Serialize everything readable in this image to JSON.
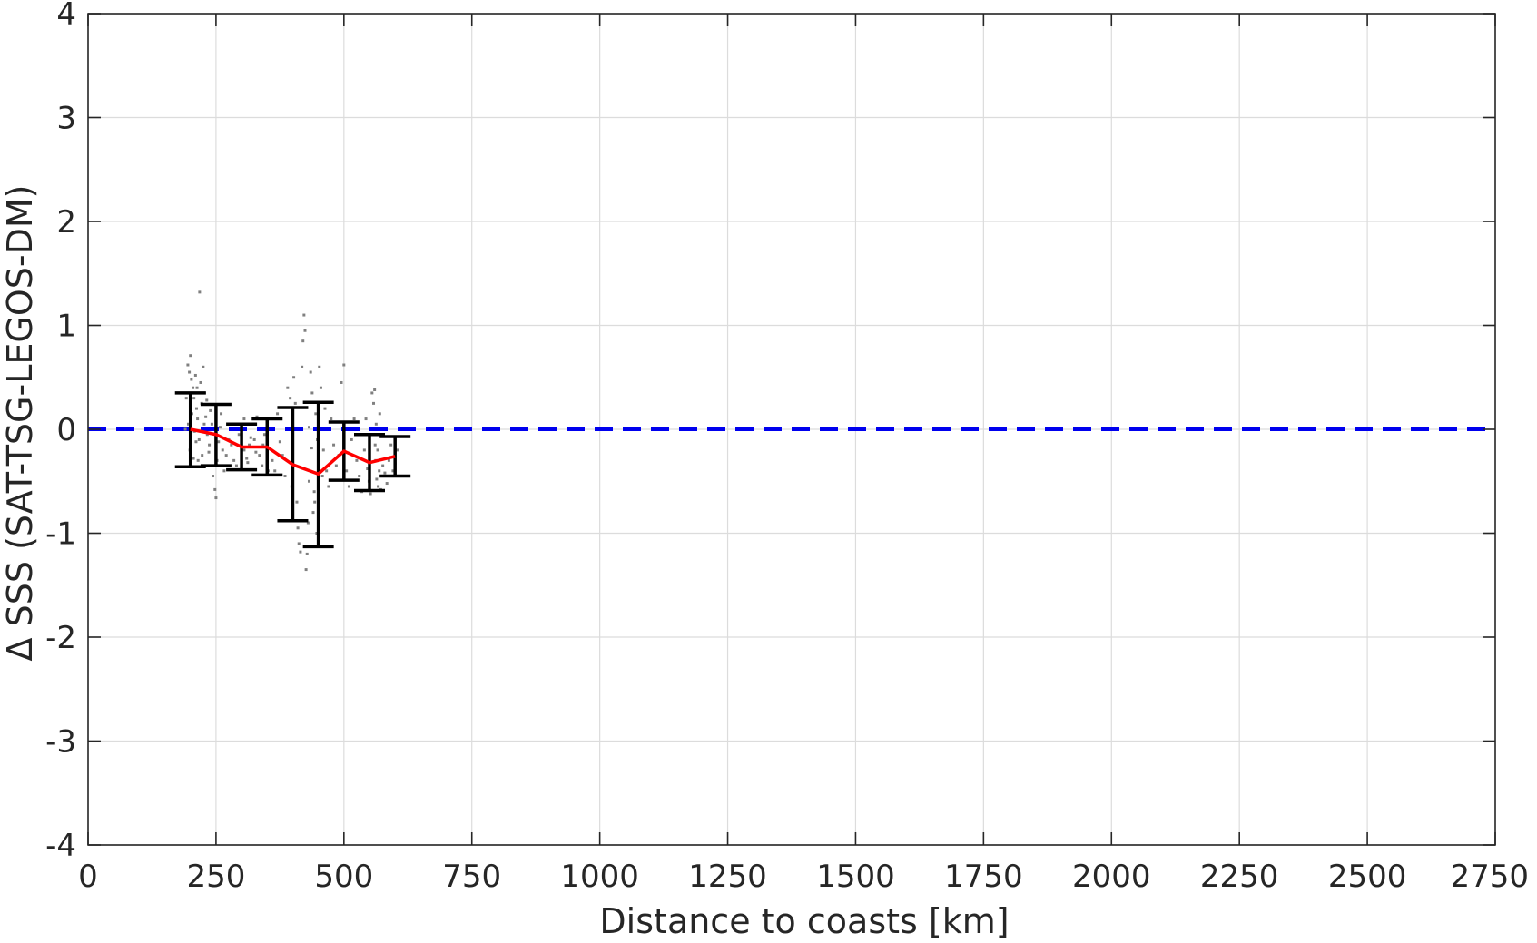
{
  "chart_data": {
    "type": "line",
    "title": "",
    "xlabel": "Distance to coasts [km]",
    "ylabel": "Δ SSS (SAT-TSG-LEGOS-DM)",
    "xlim": [
      0,
      2750
    ],
    "ylim": [
      -4,
      4
    ],
    "xticks": [
      0,
      250,
      500,
      750,
      1000,
      1250,
      1500,
      1750,
      2000,
      2250,
      2500,
      2750
    ],
    "yticks": [
      -4,
      -3,
      -2,
      -1,
      0,
      1,
      2,
      3,
      4
    ],
    "xtick_labels": [
      "0",
      "250",
      "500",
      "750",
      "1000",
      "1250",
      "1500",
      "1750",
      "2000",
      "2250",
      "2500",
      "2750"
    ],
    "ytick_labels": [
      "-4",
      "-3",
      "-2",
      "-1",
      "0",
      "1",
      "2",
      "3",
      "4"
    ],
    "grid": true,
    "colors": {
      "mean_line": "#ff0000",
      "zero_line": "#0000ee",
      "error_bars": "#000000",
      "scatter": "#808080",
      "grid": "#dcdcdc",
      "axes": "#262626"
    },
    "zero_line_y": 0,
    "series": [
      {
        "type": "line",
        "x": [
          200,
          250,
          300,
          350,
          400,
          450,
          500,
          550,
          600
        ],
        "y": [
          0.0,
          -0.05,
          -0.17,
          -0.17,
          -0.34,
          -0.43,
          -0.21,
          -0.32,
          -0.26
        ]
      },
      {
        "type": "errorbar",
        "x": [
          200,
          250,
          300,
          350,
          400,
          450,
          500,
          550,
          600
        ],
        "upper": [
          0.35,
          0.24,
          0.05,
          0.1,
          0.21,
          0.26,
          0.07,
          -0.05,
          -0.07
        ],
        "lower": [
          -0.36,
          -0.35,
          -0.39,
          -0.44,
          -0.88,
          -1.13,
          -0.49,
          -0.59,
          -0.45
        ]
      },
      {
        "type": "scatter",
        "points": [
          [
            195,
            0.62
          ],
          [
            198,
            0.55
          ],
          [
            200,
            0.71
          ],
          [
            202,
            0.48
          ],
          [
            205,
            0.4
          ],
          [
            207,
            0.3
          ],
          [
            210,
            0.52
          ],
          [
            212,
            0.2
          ],
          [
            203,
            0.15
          ],
          [
            196,
            0.05
          ],
          [
            208,
            -0.02
          ],
          [
            211,
            -0.12
          ],
          [
            199,
            -0.2
          ],
          [
            206,
            -0.28
          ],
          [
            214,
            0.1
          ],
          [
            218,
            1.32
          ],
          [
            220,
            0.45
          ],
          [
            222,
            0.25
          ],
          [
            225,
            0.6
          ],
          [
            228,
            0.35
          ],
          [
            215,
            -0.3
          ],
          [
            213,
            0.4
          ],
          [
            192,
            0.3
          ],
          [
            190,
            0.0
          ],
          [
            230,
            0.12
          ],
          [
            233,
            -0.05
          ],
          [
            236,
            -0.22
          ],
          [
            239,
            0.18
          ],
          [
            242,
            0.05
          ],
          [
            245,
            -0.35
          ],
          [
            248,
            -0.58
          ],
          [
            250,
            -0.66
          ],
          [
            252,
            -0.3
          ],
          [
            255,
            -0.12
          ],
          [
            258,
            0.02
          ],
          [
            260,
            0.15
          ],
          [
            263,
            -0.2
          ],
          [
            266,
            -0.4
          ],
          [
            270,
            -0.25
          ],
          [
            275,
            -0.1
          ],
          [
            280,
            -0.15
          ],
          [
            285,
            -0.3
          ],
          [
            290,
            -0.35
          ],
          [
            295,
            -0.05
          ],
          [
            300,
            0.02
          ],
          [
            305,
            -0.2
          ],
          [
            310,
            -0.28
          ],
          [
            315,
            -0.15
          ],
          [
            320,
            0.05
          ],
          [
            325,
            -0.1
          ],
          [
            330,
            0.12
          ],
          [
            335,
            -0.25
          ],
          [
            340,
            -0.35
          ],
          [
            345,
            -0.05
          ],
          [
            350,
            0.08
          ],
          [
            355,
            -0.18
          ],
          [
            360,
            -0.3
          ],
          [
            365,
            -0.4
          ],
          [
            370,
            0.15
          ],
          [
            375,
            -0.12
          ],
          [
            380,
            -0.25
          ],
          [
            385,
            -0.45
          ],
          [
            390,
            0.4
          ],
          [
            395,
            0.3
          ],
          [
            398,
            -0.55
          ],
          [
            400,
            -0.3
          ],
          [
            402,
            0.5
          ],
          [
            405,
            0.25
          ],
          [
            408,
            -0.7
          ],
          [
            410,
            -0.95
          ],
          [
            412,
            -1.1
          ],
          [
            415,
            -1.18
          ],
          [
            418,
            0.6
          ],
          [
            420,
            0.85
          ],
          [
            422,
            1.1
          ],
          [
            424,
            0.95
          ],
          [
            426,
            -1.35
          ],
          [
            428,
            -1.2
          ],
          [
            430,
            -0.9
          ],
          [
            432,
            -0.5
          ],
          [
            435,
            0.55
          ],
          [
            438,
            0.35
          ],
          [
            440,
            -0.8
          ],
          [
            442,
            -0.6
          ],
          [
            445,
            0.15
          ],
          [
            448,
            -0.1
          ],
          [
            450,
            -0.3
          ],
          [
            452,
            0.6
          ],
          [
            455,
            0.4
          ],
          [
            458,
            -0.45
          ],
          [
            460,
            -0.2
          ],
          [
            463,
            0.2
          ],
          [
            466,
            -0.4
          ],
          [
            470,
            -0.55
          ],
          [
            475,
            0.1
          ],
          [
            480,
            -0.15
          ],
          [
            485,
            -0.35
          ],
          [
            490,
            -0.25
          ],
          [
            495,
            0.45
          ],
          [
            500,
            0.62
          ],
          [
            505,
            -0.4
          ],
          [
            510,
            -0.55
          ],
          [
            515,
            -0.1
          ],
          [
            520,
            0.1
          ],
          [
            525,
            -0.3
          ],
          [
            530,
            -0.45
          ],
          [
            535,
            -0.6
          ],
          [
            540,
            -0.2
          ],
          [
            543,
            0.1
          ],
          [
            546,
            -0.38
          ],
          [
            549,
            -0.5
          ],
          [
            552,
            -0.62
          ],
          [
            555,
            0.35
          ],
          [
            558,
            0.25
          ],
          [
            561,
            -0.15
          ],
          [
            564,
            -0.48
          ],
          [
            567,
            -0.55
          ],
          [
            570,
            0.15
          ],
          [
            573,
            -0.05
          ],
          [
            576,
            -0.35
          ],
          [
            580,
            -0.42
          ],
          [
            584,
            -0.52
          ],
          [
            588,
            -0.3
          ],
          [
            592,
            -0.15
          ],
          [
            596,
            -0.4
          ],
          [
            600,
            -0.33
          ],
          [
            605,
            -0.2
          ],
          [
            610,
            -0.45
          ],
          [
            432,
            0.02
          ],
          [
            437,
            -0.18
          ],
          [
            443,
            -0.7
          ],
          [
            447,
            -1.0
          ],
          [
            560,
            0.38
          ],
          [
            563,
            0.05
          ],
          [
            566,
            -0.2
          ],
          [
            569,
            -0.4
          ],
          [
            572,
            -0.58
          ],
          [
            562,
            -0.3
          ],
          [
            217,
            -0.1
          ],
          [
            223,
            -0.25
          ],
          [
            227,
            0.05
          ],
          [
            232,
            0.28
          ],
          [
            237,
            -0.15
          ],
          [
            244,
            -0.45
          ],
          [
            305,
            0.1
          ],
          [
            312,
            -0.32
          ],
          [
            318,
            -0.08
          ],
          [
            328,
            -0.22
          ],
          [
            342,
            -0.15
          ],
          [
            352,
            -0.4
          ]
        ]
      }
    ]
  }
}
